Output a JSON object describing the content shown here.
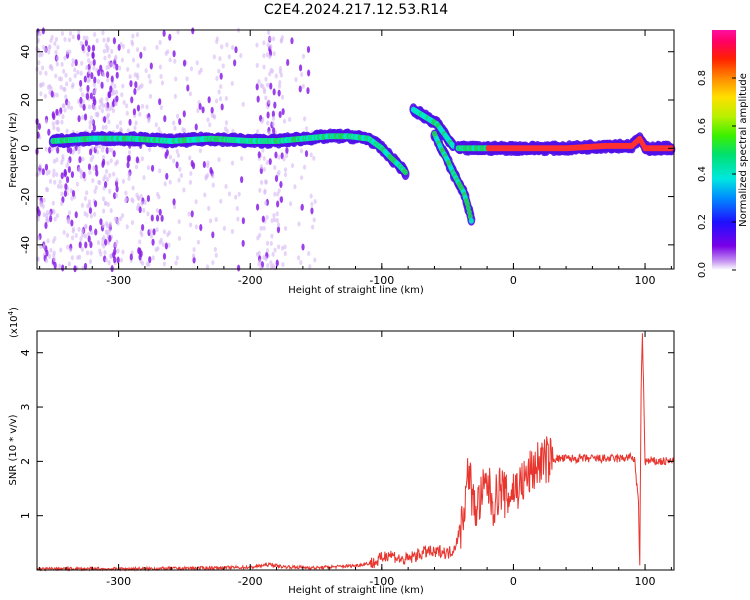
{
  "title": "C2E4.2024.217.12.53.R14",
  "chart_data": [
    {
      "type": "heatmap",
      "xlabel": "Height of straight line (km)",
      "ylabel": "Frequency (Hz)",
      "xlim": [
        -362,
        122
      ],
      "ylim": [
        -50,
        49
      ],
      "xticks": [
        "-300",
        "-200",
        "-100",
        "0",
        "100"
      ],
      "yticks": [
        "40",
        "20",
        "0",
        "-20",
        "-40"
      ],
      "colorbar": {
        "label": "Normalized spectral amplitude",
        "range": [
          0,
          1
        ],
        "ticks": [
          "0.0",
          "0.2",
          "0.4",
          "0.6",
          "0.8"
        ]
      },
      "ridges": [
        {
          "x": [
            -350,
            -320,
            -290,
            -260,
            -230,
            -200,
            -180,
            -160,
            -140,
            -125,
            -110,
            -100,
            -93,
            -87,
            -82
          ],
          "y": [
            3,
            4,
            4,
            3,
            4,
            3,
            3,
            4,
            5,
            5,
            4,
            0,
            -4,
            -7,
            -10
          ]
        },
        {
          "x": [
            -76,
            -70,
            -64,
            -58,
            -54,
            -50,
            -46
          ],
          "y": [
            16,
            14,
            12,
            10,
            7,
            4,
            1
          ]
        },
        {
          "x": [
            -60,
            -55,
            -50,
            -46,
            -42,
            -38,
            -35,
            -32
          ],
          "y": [
            6,
            0,
            -5,
            -10,
            -14,
            -18,
            -23,
            -30
          ]
        },
        {
          "x": [
            -42,
            -30,
            -10,
            10,
            40,
            70,
            90,
            96,
            100,
            120
          ],
          "y": [
            0,
            0,
            0,
            0,
            0,
            1,
            1,
            4,
            0,
            0
          ]
        }
      ]
    },
    {
      "type": "line",
      "xlabel": "Height of straight line (km)",
      "ylabel": "SNR (10 * v/v)",
      "multiplier": "(x10",
      "multiplier_exp": "4",
      "xlim": [
        -362,
        122
      ],
      "ylim": [
        0,
        4.4
      ],
      "xticks": [
        "-300",
        "-200",
        "-100",
        "0",
        "100"
      ],
      "yticks": [
        "1",
        "2",
        "3",
        "4"
      ],
      "series": [
        {
          "color": "#e8352e",
          "x": [
            -362,
            -300,
            -250,
            -200,
            -185,
            -175,
            -150,
            -120,
            -105,
            -100,
            -95,
            -90,
            -85,
            -80,
            -75,
            -70,
            -65,
            -60,
            -55,
            -50,
            -45,
            -40,
            -36,
            -34,
            -30,
            -25,
            -20,
            -15,
            -10,
            -5,
            0,
            5,
            10,
            15,
            20,
            30,
            40,
            50,
            60,
            70,
            80,
            88,
            92,
            95,
            96,
            97,
            98,
            100,
            105,
            110,
            122
          ],
          "y": [
            0.02,
            0.02,
            0.03,
            0.05,
            0.1,
            0.06,
            0.04,
            0.08,
            0.14,
            0.22,
            0.3,
            0.25,
            0.18,
            0.2,
            0.26,
            0.3,
            0.35,
            0.3,
            0.36,
            0.3,
            0.4,
            0.8,
            1.4,
            1.9,
            1.1,
            1.3,
            1.6,
            1.2,
            1.55,
            1.3,
            1.5,
            1.55,
            1.7,
            1.85,
            2.0,
            2.05,
            2.05,
            2.05,
            2.05,
            2.05,
            2.05,
            2.08,
            2.05,
            1.2,
            0.1,
            3.3,
            4.4,
            2.0,
            2.0,
            2.0,
            2.0
          ]
        }
      ]
    }
  ]
}
